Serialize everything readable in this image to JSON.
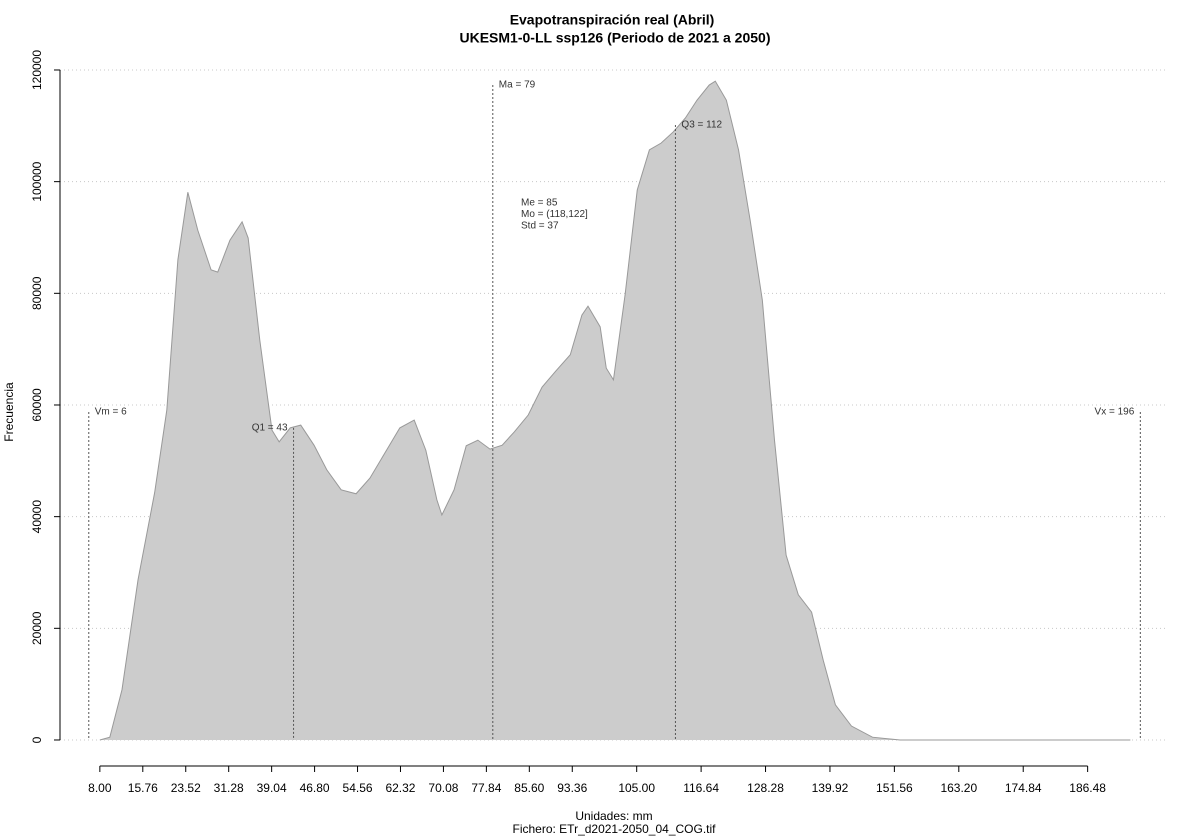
{
  "chart_data": {
    "type": "area",
    "title": "Evapotranspiración real (Abril)",
    "subtitle": "UKESM1-0-LL ssp126 (Periodo de 2021 a 2050)",
    "x_label": "Unidades: mm",
    "x_sublabel": "Fichero: ETr_d2021-2050_04_COG.tif",
    "y_label": "Frecuencia",
    "color": "#cccccc",
    "edge_color": "#999999",
    "grid": true,
    "xlim": [
      0.8,
      201
    ],
    "ylim": [
      -4660,
      121430
    ],
    "xticks": [
      {
        "value": 8.0,
        "label": "8.00"
      },
      {
        "value": 15.76,
        "label": "15.76"
      },
      {
        "value": 23.52,
        "label": "23.52"
      },
      {
        "value": 31.28,
        "label": "31.28"
      },
      {
        "value": 39.04,
        "label": "39.04"
      },
      {
        "value": 46.8,
        "label": "46.80"
      },
      {
        "value": 54.56,
        "label": "54.56"
      },
      {
        "value": 62.32,
        "label": "62.32"
      },
      {
        "value": 70.08,
        "label": "70.08"
      },
      {
        "value": 77.84,
        "label": "77.84"
      },
      {
        "value": 85.6,
        "label": "85.60"
      },
      {
        "value": 93.36,
        "label": "93.36"
      },
      {
        "value": 105.0,
        "label": "105.00"
      },
      {
        "value": 116.64,
        "label": "116.64"
      },
      {
        "value": 128.28,
        "label": "128.28"
      },
      {
        "value": 139.92,
        "label": "139.92"
      },
      {
        "value": 151.56,
        "label": "151.56"
      },
      {
        "value": 163.2,
        "label": "163.20"
      },
      {
        "value": 174.84,
        "label": "174.84"
      },
      {
        "value": 186.48,
        "label": "186.48"
      }
    ],
    "yticks": [
      0,
      20000,
      40000,
      60000,
      80000,
      100000,
      120000
    ],
    "x": [
      8.0,
      9.8,
      12.0,
      14.9,
      17.9,
      20.1,
      22.1,
      23.9,
      25.7,
      28.1,
      29.3,
      31.5,
      33.7,
      34.8,
      36.9,
      39.1,
      40.4,
      42.4,
      44.3,
      46.7,
      49.0,
      51.6,
      54.3,
      56.8,
      59.5,
      62.2,
      64.8,
      66.9,
      68.9,
      69.8,
      72.0,
      74.2,
      76.3,
      78.5,
      80.7,
      82.9,
      85.4,
      87.9,
      90.4,
      93.0,
      95.1,
      96.2,
      98.4,
      99.5,
      100.8,
      102.9,
      105.1,
      107.3,
      109.4,
      111.6,
      113.8,
      115.9,
      118.1,
      119.2,
      121.2,
      123.4,
      125.5,
      127.7,
      129.9,
      132.0,
      134.2,
      136.6,
      138.7,
      140.9,
      143.8,
      147.6,
      152.6,
      194.2
    ],
    "values": [
      0,
      500,
      9000,
      28700,
      44300,
      59100,
      86000,
      98100,
      91300,
      84200,
      83800,
      89500,
      92800,
      89900,
      71600,
      55500,
      53400,
      55900,
      56400,
      52800,
      48400,
      44800,
      44100,
      46900,
      51400,
      55900,
      57300,
      51900,
      43000,
      40300,
      44800,
      52700,
      53700,
      52100,
      52800,
      55200,
      58200,
      63200,
      66100,
      69000,
      76100,
      77700,
      74000,
      66600,
      64500,
      79700,
      98500,
      105700,
      106900,
      108900,
      111400,
      114600,
      117300,
      118000,
      114600,
      105700,
      93100,
      78800,
      53700,
      33100,
      26000,
      22900,
      14300,
      6300,
      2500,
      500,
      0,
      0
    ],
    "annotations": [
      {
        "label": "Vm = 6",
        "x": 6,
        "y": 58750
      },
      {
        "label": "Q1 = 43",
        "x": 43,
        "y": 55900
      },
      {
        "label": "Ma = 79",
        "x": 79,
        "y": 117300
      },
      {
        "label": "Q3 = 112",
        "x": 112,
        "y": 110150
      },
      {
        "label": "Vx = 196",
        "x": 196,
        "y": 58750
      }
    ],
    "stats": [
      "Me = 85",
      "Mo = (118,122]",
      "Std = 37"
    ]
  }
}
